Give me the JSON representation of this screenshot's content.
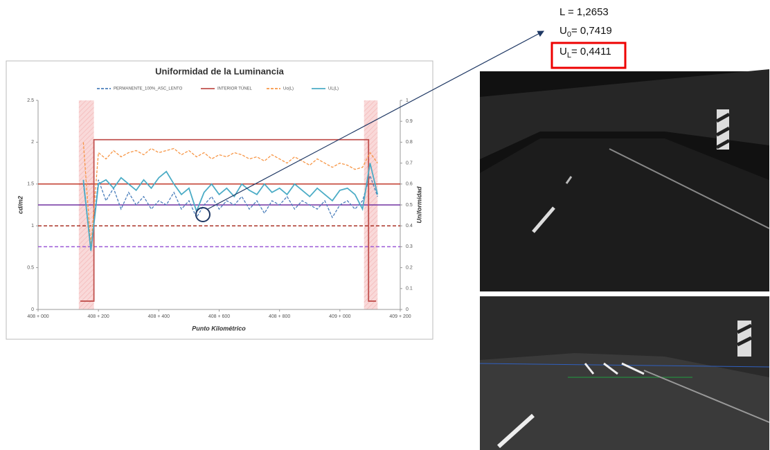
{
  "chart_data": {
    "type": "line",
    "title": "Uniformidad de la Luminancia",
    "x_label": "Punto Kilométrico",
    "y_label": "cd/m2",
    "y2_label": "Uniformidad",
    "xlim": [
      408000,
      409200
    ],
    "xticks": [
      {
        "value": 408000,
        "label": "408 + 000"
      },
      {
        "value": 408200,
        "label": "408 + 200"
      },
      {
        "value": 408400,
        "label": "408 + 400"
      },
      {
        "value": 408600,
        "label": "408 + 600"
      },
      {
        "value": 408800,
        "label": "408 + 800"
      },
      {
        "value": 409000,
        "label": "409 + 000"
      },
      {
        "value": 409200,
        "label": "409 + 200"
      }
    ],
    "ylim": [
      0,
      2.5
    ],
    "yticks": [
      0,
      0.5,
      1,
      1.5,
      2,
      2.5
    ],
    "y2lim": [
      0,
      1
    ],
    "y2ticks": [
      0,
      0.1,
      0.2,
      0.3,
      0.4,
      0.5,
      0.6,
      0.7,
      0.8,
      0.9,
      1
    ],
    "legend": "top",
    "shaded_x_ranges": [
      [
        408135,
        408185
      ],
      [
        409080,
        409125
      ]
    ],
    "hlines": [
      {
        "value": 1.5,
        "color": "#c0392b",
        "dash": false
      },
      {
        "value": 1.25,
        "color": "#7030a0",
        "dash": false
      },
      {
        "value": 1,
        "color": "#a93226",
        "dash": true
      },
      {
        "value": 0.75,
        "color": "#9b59d6",
        "dash": true
      }
    ],
    "series": [
      {
        "name": "PERMANENTE_100%_ASC_LENTO",
        "color": "#4a7ebb",
        "dash": true,
        "x": [
          408150,
          408175,
          408200,
          408225,
          408250,
          408275,
          408300,
          408325,
          408350,
          408375,
          408400,
          408425,
          408450,
          408475,
          408500,
          408525,
          408550,
          408575,
          408600,
          408625,
          408650,
          408675,
          408700,
          408725,
          408750,
          408775,
          408800,
          408825,
          408850,
          408875,
          408900,
          408925,
          408950,
          408975,
          409000,
          409025,
          409050,
          409075,
          409100,
          409125
        ],
        "values": [
          1.5,
          0.75,
          1.55,
          1.3,
          1.45,
          1.2,
          1.4,
          1.25,
          1.35,
          1.2,
          1.3,
          1.25,
          1.4,
          1.2,
          1.3,
          1.1,
          1.25,
          1.35,
          1.2,
          1.3,
          1.25,
          1.35,
          1.2,
          1.3,
          1.15,
          1.3,
          1.25,
          1.35,
          1.2,
          1.3,
          1.25,
          1.2,
          1.3,
          1.1,
          1.25,
          1.3,
          1.2,
          1.3,
          1.6,
          1.35
        ]
      },
      {
        "name": "INTERIOR TÚNEL",
        "color": "#c0504d",
        "dash": false,
        "x": [
          408140,
          408185,
          408185,
          409095,
          409095,
          409120
        ],
        "values": [
          0.1,
          0.1,
          2.03,
          2.03,
          0.1,
          0.1
        ]
      },
      {
        "name": "Uo(L)",
        "color": "#f79646",
        "dash": true,
        "axis": "y2",
        "x": [
          408150,
          408175,
          408200,
          408225,
          408250,
          408275,
          408300,
          408325,
          408350,
          408375,
          408400,
          408425,
          408450,
          408475,
          408500,
          408525,
          408550,
          408575,
          408600,
          408625,
          408650,
          408675,
          408700,
          408725,
          408750,
          408775,
          408800,
          408825,
          408850,
          408875,
          408900,
          408925,
          408950,
          408975,
          409000,
          409025,
          409050,
          409075,
          409100,
          409125
        ],
        "values": [
          0.8,
          0.3,
          0.75,
          0.72,
          0.76,
          0.73,
          0.75,
          0.76,
          0.74,
          0.77,
          0.75,
          0.76,
          0.77,
          0.74,
          0.76,
          0.73,
          0.75,
          0.72,
          0.74,
          0.73,
          0.75,
          0.74,
          0.72,
          0.73,
          0.71,
          0.74,
          0.72,
          0.7,
          0.73,
          0.71,
          0.69,
          0.72,
          0.7,
          0.68,
          0.7,
          0.69,
          0.67,
          0.68,
          0.75,
          0.7
        ]
      },
      {
        "name": "UL(L)",
        "color": "#4bacc6",
        "dash": false,
        "axis": "y2",
        "x": [
          408150,
          408175,
          408200,
          408225,
          408250,
          408275,
          408300,
          408325,
          408350,
          408375,
          408400,
          408425,
          408450,
          408475,
          408500,
          408525,
          408550,
          408575,
          408600,
          408625,
          408650,
          408675,
          408700,
          408725,
          408750,
          408775,
          408800,
          408825,
          408850,
          408875,
          408900,
          408925,
          408950,
          408975,
          409000,
          409025,
          409050,
          409075,
          409100,
          409125
        ],
        "values": [
          0.62,
          0.28,
          0.6,
          0.62,
          0.58,
          0.63,
          0.6,
          0.57,
          0.62,
          0.58,
          0.63,
          0.66,
          0.6,
          0.55,
          0.58,
          0.47,
          0.56,
          0.6,
          0.55,
          0.58,
          0.54,
          0.6,
          0.57,
          0.55,
          0.6,
          0.56,
          0.58,
          0.55,
          0.6,
          0.57,
          0.54,
          0.58,
          0.55,
          0.52,
          0.57,
          0.58,
          0.55,
          0.48,
          0.7,
          0.55
        ]
      }
    ],
    "annotations": [
      {
        "main": "L =  1,2653"
      },
      {
        "main": "U",
        "sub": "0",
        "rest": "= 0,7419"
      },
      {
        "main": "U",
        "sub": "L",
        "rest": "=  0,4411"
      }
    ]
  }
}
